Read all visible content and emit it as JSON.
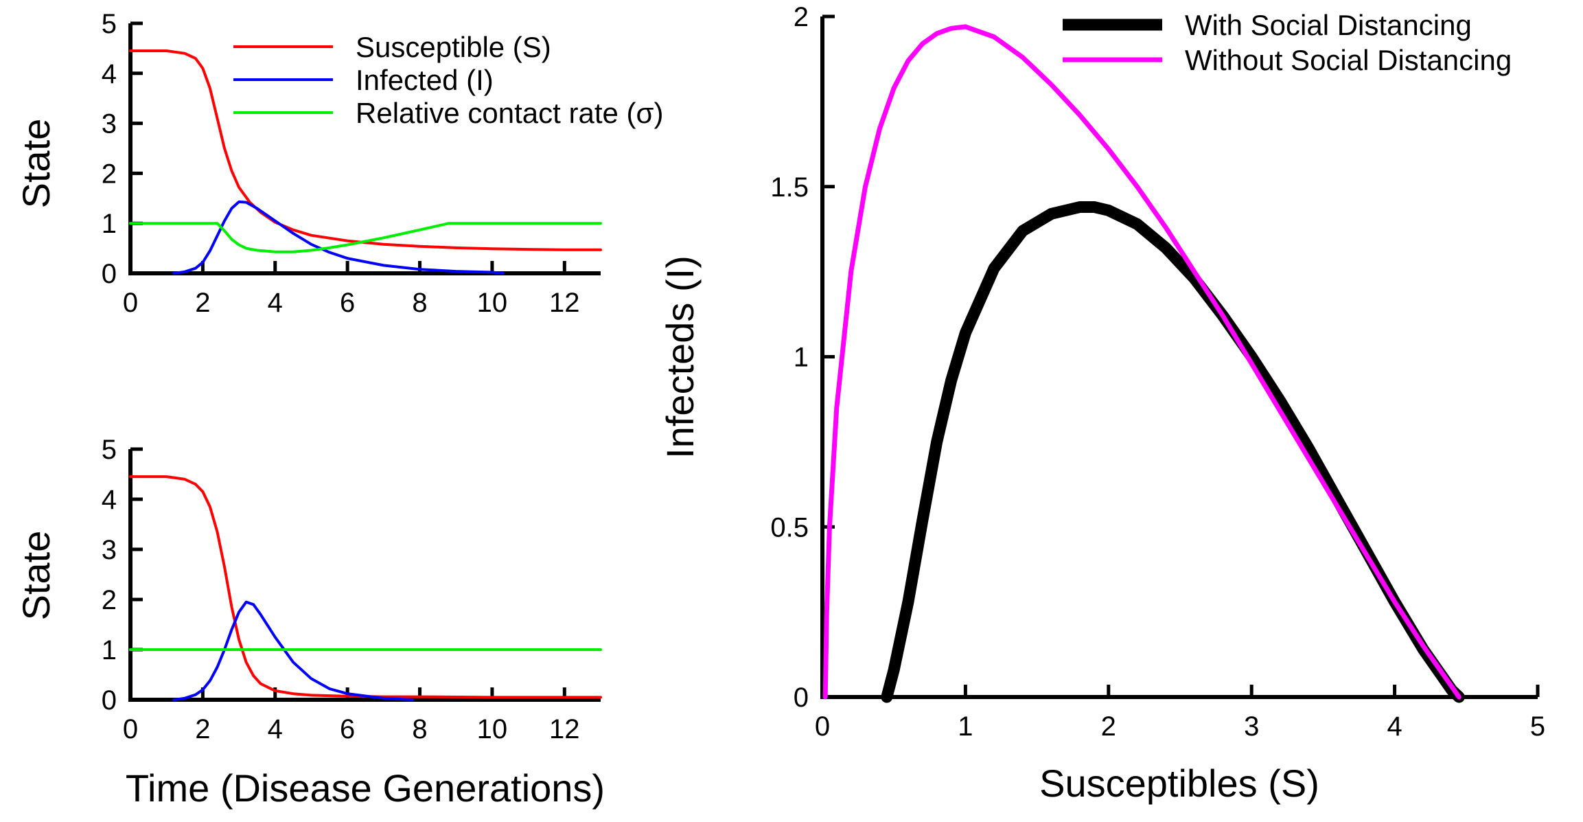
{
  "chart_data": [
    {
      "type": "line",
      "ylabel": "State",
      "xlim": [
        0,
        13
      ],
      "ylim": [
        0,
        5
      ],
      "xticks": [
        "0",
        "2",
        "4",
        "6",
        "8",
        "10",
        "12"
      ],
      "yticks": [
        "0",
        "1",
        "2",
        "3",
        "4",
        "5"
      ],
      "legend_position": "top-right",
      "series": [
        {
          "name": "Susceptible (S)",
          "color": "#ff0000",
          "x": [
            0,
            1,
            1.5,
            1.8,
            2.0,
            2.2,
            2.4,
            2.6,
            2.8,
            3.0,
            3.3,
            3.6,
            4.0,
            4.5,
            5.0,
            6.0,
            7.0,
            8.0,
            9.0,
            10.0,
            11.0,
            12.0,
            13.0
          ],
          "y": [
            4.45,
            4.45,
            4.4,
            4.3,
            4.1,
            3.7,
            3.1,
            2.5,
            2.05,
            1.72,
            1.42,
            1.22,
            1.02,
            0.87,
            0.76,
            0.65,
            0.58,
            0.54,
            0.51,
            0.49,
            0.48,
            0.47,
            0.47
          ]
        },
        {
          "name": "Infected (I)",
          "color": "#0000ff",
          "x": [
            1.2,
            1.5,
            1.8,
            2.0,
            2.2,
            2.4,
            2.6,
            2.8,
            3.0,
            3.2,
            3.5,
            4.0,
            4.5,
            5.0,
            5.5,
            6.0,
            7.0,
            8.0,
            9.0,
            10.0,
            10.3
          ],
          "y": [
            0.0,
            0.03,
            0.1,
            0.22,
            0.45,
            0.75,
            1.05,
            1.3,
            1.43,
            1.42,
            1.3,
            1.05,
            0.8,
            0.58,
            0.42,
            0.3,
            0.16,
            0.08,
            0.04,
            0.02,
            0.0
          ]
        },
        {
          "name": "Relative contact rate (σ)",
          "color": "#00ee00",
          "x": [
            0,
            2.4,
            2.6,
            2.8,
            3.0,
            3.2,
            3.5,
            4.0,
            4.5,
            5.0,
            5.5,
            6.0,
            6.5,
            7.0,
            7.5,
            8.0,
            8.5,
            8.8,
            13.0
          ],
          "y": [
            1.0,
            1.0,
            0.85,
            0.68,
            0.57,
            0.5,
            0.46,
            0.43,
            0.43,
            0.46,
            0.51,
            0.57,
            0.64,
            0.71,
            0.79,
            0.87,
            0.95,
            1.0,
            1.0
          ]
        }
      ]
    },
    {
      "type": "line",
      "xlabel": "Time (Disease Generations)",
      "ylabel": "State",
      "xlim": [
        0,
        13
      ],
      "ylim": [
        0,
        5
      ],
      "xticks": [
        "0",
        "2",
        "4",
        "6",
        "8",
        "10",
        "12"
      ],
      "yticks": [
        "0",
        "1",
        "2",
        "3",
        "4",
        "5"
      ],
      "series": [
        {
          "name": "Susceptible (S)",
          "color": "#ff0000",
          "x": [
            0,
            1.0,
            1.5,
            1.8,
            2.0,
            2.2,
            2.4,
            2.6,
            2.8,
            3.0,
            3.2,
            3.4,
            3.6,
            4.0,
            4.5,
            5.0,
            6.0,
            7.0,
            8.0,
            10.0,
            13.0
          ],
          "y": [
            4.45,
            4.45,
            4.4,
            4.3,
            4.15,
            3.85,
            3.35,
            2.65,
            1.85,
            1.2,
            0.75,
            0.48,
            0.32,
            0.18,
            0.12,
            0.09,
            0.07,
            0.06,
            0.06,
            0.05,
            0.05
          ]
        },
        {
          "name": "Infected (I)",
          "color": "#0000ff",
          "x": [
            1.2,
            1.5,
            1.8,
            2.0,
            2.2,
            2.4,
            2.6,
            2.8,
            3.0,
            3.2,
            3.4,
            3.6,
            4.0,
            4.5,
            5.0,
            5.5,
            6.0,
            7.0,
            7.8
          ],
          "y": [
            0.0,
            0.03,
            0.1,
            0.2,
            0.38,
            0.65,
            1.0,
            1.4,
            1.75,
            1.95,
            1.9,
            1.7,
            1.25,
            0.75,
            0.42,
            0.22,
            0.12,
            0.03,
            0.0
          ]
        },
        {
          "name": "Relative contact rate (σ)",
          "color": "#00ee00",
          "x": [
            0,
            13.0
          ],
          "y": [
            1.0,
            1.0
          ]
        }
      ]
    },
    {
      "type": "line",
      "xlabel": "Susceptibles (S)",
      "ylabel": "Infecteds (I)",
      "xlim": [
        0,
        5
      ],
      "ylim": [
        0,
        2
      ],
      "xticks": [
        "0",
        "1",
        "2",
        "3",
        "4",
        "5"
      ],
      "yticks": [
        "0",
        "0.5",
        "1",
        "1.5",
        "2"
      ],
      "legend_position": "top-right",
      "series": [
        {
          "name": "With Social Distancing",
          "color": "#000000",
          "x": [
            0.45,
            0.5,
            0.6,
            0.7,
            0.8,
            0.9,
            1.0,
            1.2,
            1.4,
            1.6,
            1.8,
            1.9,
            2.0,
            2.2,
            2.4,
            2.6,
            2.8,
            3.0,
            3.2,
            3.4,
            3.6,
            3.8,
            4.0,
            4.2,
            4.4,
            4.45
          ],
          "y": [
            0.0,
            0.08,
            0.28,
            0.52,
            0.75,
            0.93,
            1.07,
            1.26,
            1.37,
            1.42,
            1.44,
            1.44,
            1.43,
            1.39,
            1.32,
            1.23,
            1.12,
            1.0,
            0.87,
            0.73,
            0.58,
            0.43,
            0.28,
            0.14,
            0.02,
            0.0
          ]
        },
        {
          "name": "Without Social Distancing",
          "color": "#ff00ff",
          "x": [
            0.02,
            0.03,
            0.05,
            0.1,
            0.2,
            0.3,
            0.4,
            0.5,
            0.6,
            0.7,
            0.8,
            0.9,
            1.0,
            1.2,
            1.4,
            1.6,
            1.8,
            2.0,
            2.2,
            2.4,
            2.6,
            2.8,
            3.0,
            3.2,
            3.4,
            3.6,
            3.8,
            4.0,
            4.2,
            4.4,
            4.45
          ],
          "y": [
            0.0,
            0.25,
            0.5,
            0.85,
            1.25,
            1.5,
            1.67,
            1.79,
            1.87,
            1.92,
            1.95,
            1.965,
            1.97,
            1.94,
            1.88,
            1.8,
            1.71,
            1.61,
            1.5,
            1.38,
            1.25,
            1.12,
            0.98,
            0.84,
            0.7,
            0.56,
            0.42,
            0.28,
            0.15,
            0.03,
            0.0
          ]
        }
      ]
    }
  ]
}
